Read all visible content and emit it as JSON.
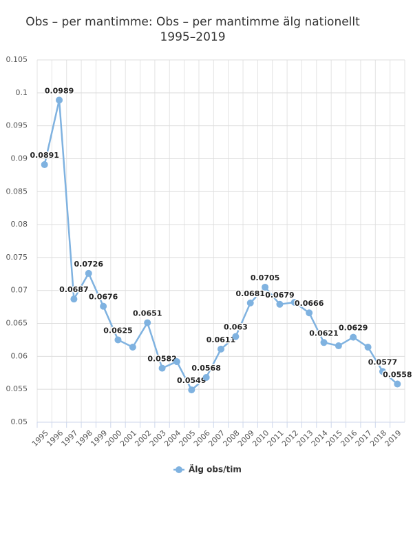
{
  "chart_data": {
    "type": "line",
    "title": [
      "Obs – per mantimme: Obs – per mantimme älg nationellt",
      "1995–2019"
    ],
    "categories": [
      "1995",
      "1996",
      "1997",
      "1998",
      "1999",
      "2000",
      "2001",
      "2002",
      "2003",
      "2004",
      "2005",
      "2006",
      "2007",
      "2008",
      "2009",
      "2010",
      "2011",
      "2012",
      "2013",
      "2014",
      "2015",
      "2016",
      "2017",
      "2018",
      "2019"
    ],
    "series": [
      {
        "name": "Älg obs/tim",
        "color": "#7fb2e0",
        "values": [
          0.0891,
          0.0989,
          0.0687,
          0.0726,
          0.0676,
          0.0625,
          0.0614,
          0.0651,
          0.0582,
          0.0592,
          0.0549,
          0.0568,
          0.0611,
          0.063,
          0.0681,
          0.0705,
          0.0679,
          0.0682,
          0.0666,
          0.0621,
          0.0616,
          0.0629,
          0.0614,
          0.0577,
          0.0558
        ],
        "value_labels": [
          "0.0891",
          "0.0989",
          "0.0687",
          "0.0726",
          "0.0676",
          "0.0625",
          null,
          "0.0651",
          "0.0582",
          null,
          "0.0549",
          "0.0568",
          "0.0611",
          "0.063",
          "0.0681",
          "0.0705",
          "0.0679",
          null,
          "0.0666",
          "0.0621",
          null,
          "0.0629",
          null,
          "0.0577",
          "0.0558"
        ]
      }
    ],
    "ylim": [
      0.05,
      0.105
    ],
    "yticks": [
      0.05,
      0.055,
      0.06,
      0.065,
      0.07,
      0.075,
      0.08,
      0.085,
      0.09,
      0.095,
      0.1,
      0.105
    ],
    "grid": true,
    "legend": "bottom"
  }
}
